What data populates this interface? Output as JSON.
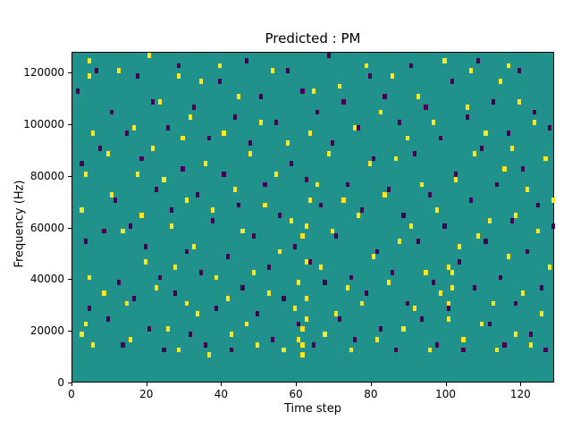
{
  "figure": {
    "background": "#ffffff"
  },
  "chart_data": {
    "type": "heatmap",
    "title": "Predicted : PM",
    "xlabel": "Time step",
    "ylabel": "Frequency (Hz)",
    "xlim": [
      0,
      129
    ],
    "ylim": [
      0,
      128000
    ],
    "x_ticks": [
      0,
      20,
      40,
      60,
      80,
      100,
      120
    ],
    "y_ticks": [
      0,
      20000,
      40000,
      60000,
      80000,
      100000,
      120000
    ],
    "grid": false,
    "legend": "none",
    "colors": {
      "background_value": "#21918c",
      "high_value": "#fde725",
      "low_value": "#440154"
    },
    "grid_shape": {
      "cols": 129,
      "rows": 64,
      "row_height_hz": 2000
    },
    "high_cells": [
      [
        4,
        124
      ],
      [
        4,
        118
      ],
      [
        5,
        96
      ],
      [
        3,
        80
      ],
      [
        2,
        66
      ],
      [
        4,
        40
      ],
      [
        3,
        22
      ],
      [
        2,
        18
      ],
      [
        5,
        14
      ],
      [
        8,
        34
      ],
      [
        9,
        88
      ],
      [
        10,
        72
      ],
      [
        12,
        120
      ],
      [
        13,
        58
      ],
      [
        14,
        30
      ],
      [
        15,
        16
      ],
      [
        16,
        98
      ],
      [
        17,
        80
      ],
      [
        18,
        64
      ],
      [
        19,
        46
      ],
      [
        20,
        126
      ],
      [
        21,
        90
      ],
      [
        22,
        36
      ],
      [
        23,
        108
      ],
      [
        24,
        78
      ],
      [
        25,
        20
      ],
      [
        26,
        60
      ],
      [
        27,
        44
      ],
      [
        28,
        118
      ],
      [
        28,
        12
      ],
      [
        29,
        94
      ],
      [
        30,
        70
      ],
      [
        30,
        30
      ],
      [
        31,
        102
      ],
      [
        32,
        52
      ],
      [
        33,
        26
      ],
      [
        34,
        116
      ],
      [
        35,
        84
      ],
      [
        36,
        10
      ],
      [
        37,
        66
      ],
      [
        38,
        40
      ],
      [
        39,
        122
      ],
      [
        40,
        96
      ],
      [
        41,
        32
      ],
      [
        42,
        18
      ],
      [
        43,
        74
      ],
      [
        44,
        110
      ],
      [
        45,
        58
      ],
      [
        46,
        22
      ],
      [
        47,
        88
      ],
      [
        48,
        42
      ],
      [
        49,
        14
      ],
      [
        50,
        100
      ],
      [
        51,
        68
      ],
      [
        52,
        34
      ],
      [
        53,
        120
      ],
      [
        54,
        80
      ],
      [
        55,
        50
      ],
      [
        56,
        12
      ],
      [
        57,
        92
      ],
      [
        58,
        62
      ],
      [
        59,
        28
      ],
      [
        60,
        16
      ],
      [
        61,
        10
      ],
      [
        61,
        14
      ],
      [
        61,
        20
      ],
      [
        62,
        24
      ],
      [
        62,
        32
      ],
      [
        62,
        46
      ],
      [
        61,
        56
      ],
      [
        62,
        60
      ],
      [
        63,
        70
      ],
      [
        60,
        38
      ],
      [
        63,
        96
      ],
      [
        64,
        112
      ],
      [
        65,
        76
      ],
      [
        66,
        44
      ],
      [
        67,
        18
      ],
      [
        68,
        88
      ],
      [
        69,
        58
      ],
      [
        70,
        26
      ],
      [
        71,
        114
      ],
      [
        72,
        70
      ],
      [
        73,
        36
      ],
      [
        74,
        12
      ],
      [
        75,
        98
      ],
      [
        76,
        64
      ],
      [
        77,
        30
      ],
      [
        78,
        122
      ],
      [
        79,
        84
      ],
      [
        80,
        48
      ],
      [
        81,
        16
      ],
      [
        82,
        104
      ],
      [
        83,
        72
      ],
      [
        84,
        38
      ],
      [
        85,
        118
      ],
      [
        86,
        86
      ],
      [
        87,
        54
      ],
      [
        88,
        20
      ],
      [
        89,
        94
      ],
      [
        90,
        60
      ],
      [
        91,
        28
      ],
      [
        92,
        110
      ],
      [
        93,
        76
      ],
      [
        94,
        42
      ],
      [
        95,
        12
      ],
      [
        96,
        100
      ],
      [
        97,
        66
      ],
      [
        98,
        34
      ],
      [
        99,
        124
      ],
      [
        100,
        24
      ],
      [
        100,
        30
      ],
      [
        101,
        36
      ],
      [
        101,
        42
      ],
      [
        100,
        44
      ],
      [
        102,
        78
      ],
      [
        103,
        52
      ],
      [
        104,
        16
      ],
      [
        105,
        106
      ],
      [
        106,
        120
      ],
      [
        107,
        88
      ],
      [
        108,
        56
      ],
      [
        109,
        22
      ],
      [
        110,
        96
      ],
      [
        111,
        62
      ],
      [
        112,
        30
      ],
      [
        113,
        12
      ],
      [
        114,
        116
      ],
      [
        115,
        82
      ],
      [
        116,
        48
      ],
      [
        116,
        122
      ],
      [
        117,
        90
      ],
      [
        118,
        18
      ],
      [
        118,
        64
      ],
      [
        119,
        108
      ],
      [
        120,
        34
      ],
      [
        121,
        74
      ],
      [
        122,
        14
      ],
      [
        123,
        100
      ],
      [
        124,
        58
      ],
      [
        125,
        26
      ],
      [
        126,
        86
      ],
      [
        127,
        44
      ],
      [
        128,
        70
      ]
    ],
    "low_cells": [
      [
        1,
        112
      ],
      [
        2,
        84
      ],
      [
        3,
        54
      ],
      [
        4,
        28
      ],
      [
        6,
        120
      ],
      [
        7,
        90
      ],
      [
        8,
        58
      ],
      [
        9,
        24
      ],
      [
        10,
        104
      ],
      [
        11,
        70
      ],
      [
        12,
        38
      ],
      [
        13,
        14
      ],
      [
        14,
        96
      ],
      [
        15,
        60
      ],
      [
        16,
        32
      ],
      [
        17,
        118
      ],
      [
        18,
        86
      ],
      [
        19,
        52
      ],
      [
        20,
        20
      ],
      [
        21,
        108
      ],
      [
        22,
        74
      ],
      [
        23,
        40
      ],
      [
        24,
        12
      ],
      [
        25,
        98
      ],
      [
        26,
        66
      ],
      [
        27,
        34
      ],
      [
        28,
        122
      ],
      [
        29,
        82
      ],
      [
        30,
        50
      ],
      [
        31,
        18
      ],
      [
        32,
        106
      ],
      [
        33,
        72
      ],
      [
        34,
        42
      ],
      [
        35,
        14
      ],
      [
        36,
        94
      ],
      [
        37,
        62
      ],
      [
        38,
        28
      ],
      [
        39,
        116
      ],
      [
        40,
        80
      ],
      [
        41,
        48
      ],
      [
        42,
        12
      ],
      [
        43,
        102
      ],
      [
        44,
        68
      ],
      [
        45,
        36
      ],
      [
        46,
        124
      ],
      [
        47,
        92
      ],
      [
        48,
        56
      ],
      [
        49,
        26
      ],
      [
        50,
        110
      ],
      [
        51,
        76
      ],
      [
        52,
        44
      ],
      [
        53,
        16
      ],
      [
        54,
        100
      ],
      [
        55,
        64
      ],
      [
        56,
        32
      ],
      [
        57,
        120
      ],
      [
        58,
        84
      ],
      [
        59,
        52
      ],
      [
        60,
        22
      ],
      [
        61,
        112
      ],
      [
        62,
        78
      ],
      [
        63,
        46
      ],
      [
        64,
        14
      ],
      [
        65,
        104
      ],
      [
        66,
        68
      ],
      [
        67,
        38
      ],
      [
        68,
        126
      ],
      [
        69,
        92
      ],
      [
        70,
        56
      ],
      [
        71,
        24
      ],
      [
        72,
        108
      ],
      [
        73,
        76
      ],
      [
        74,
        40
      ],
      [
        75,
        16
      ],
      [
        76,
        98
      ],
      [
        77,
        66
      ],
      [
        78,
        34
      ],
      [
        79,
        118
      ],
      [
        80,
        86
      ],
      [
        81,
        50
      ],
      [
        82,
        20
      ],
      [
        83,
        110
      ],
      [
        84,
        74
      ],
      [
        85,
        42
      ],
      [
        86,
        12
      ],
      [
        87,
        100
      ],
      [
        88,
        64
      ],
      [
        89,
        30
      ],
      [
        90,
        122
      ],
      [
        91,
        88
      ],
      [
        92,
        54
      ],
      [
        93,
        24
      ],
      [
        94,
        106
      ],
      [
        95,
        72
      ],
      [
        96,
        38
      ],
      [
        97,
        14
      ],
      [
        98,
        94
      ],
      [
        99,
        60
      ],
      [
        100,
        28
      ],
      [
        101,
        116
      ],
      [
        102,
        80
      ],
      [
        103,
        46
      ],
      [
        104,
        12
      ],
      [
        105,
        102
      ],
      [
        106,
        70
      ],
      [
        107,
        36
      ],
      [
        108,
        124
      ],
      [
        109,
        90
      ],
      [
        110,
        54
      ],
      [
        111,
        22
      ],
      [
        112,
        108
      ],
      [
        113,
        76
      ],
      [
        114,
        40
      ],
      [
        115,
        14
      ],
      [
        116,
        96
      ],
      [
        117,
        62
      ],
      [
        118,
        30
      ],
      [
        119,
        120
      ],
      [
        120,
        82
      ],
      [
        121,
        50
      ],
      [
        122,
        18
      ],
      [
        123,
        104
      ],
      [
        124,
        68
      ],
      [
        125,
        36
      ],
      [
        126,
        12
      ],
      [
        127,
        98
      ],
      [
        128,
        60
      ]
    ]
  }
}
